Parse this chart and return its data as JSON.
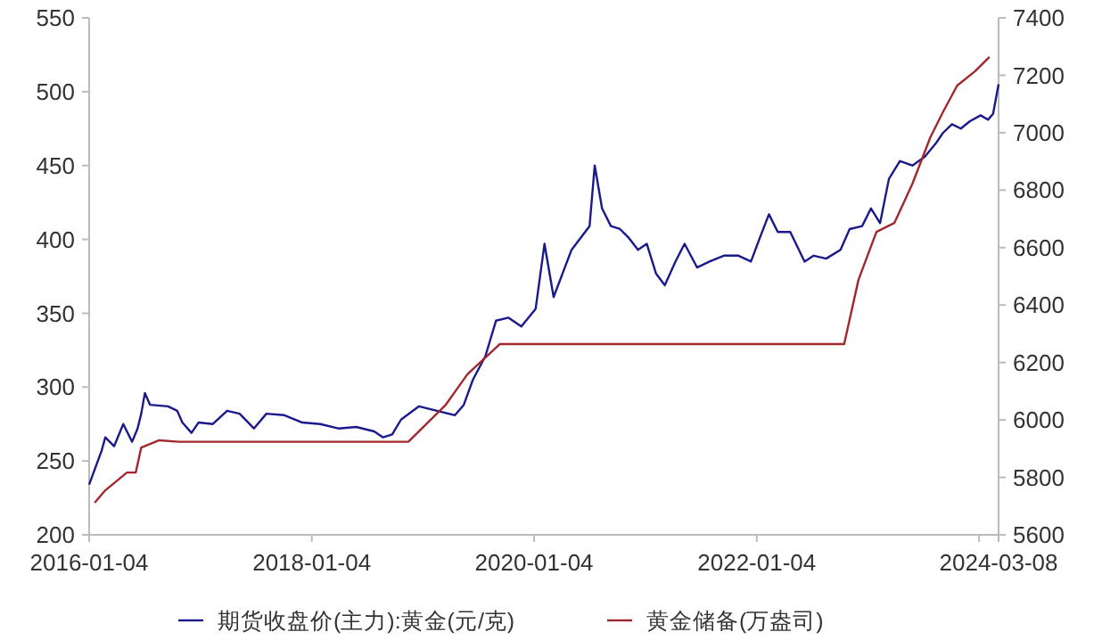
{
  "chart_data": {
    "type": "line",
    "xlim": [
      "2016-01-04",
      "2024-03-08"
    ],
    "xticks": [
      {
        "value": "2016-01-04",
        "label": "2016-01-04"
      },
      {
        "value": "2018-01-04",
        "label": "2018-01-04"
      },
      {
        "value": "2020-01-04",
        "label": "2020-01-04"
      },
      {
        "value": "2022-01-04",
        "label": "2022-01-04"
      },
      {
        "value": "2024-01-04",
        "label": null
      },
      {
        "value": "2024-03-08",
        "label": "2024-03-08"
      }
    ],
    "ylim": [
      200,
      550
    ],
    "yticks": [
      200,
      250,
      300,
      350,
      400,
      450,
      500,
      550
    ],
    "y2lim": [
      5600,
      7400
    ],
    "y2ticks": [
      5600,
      5800,
      6000,
      6200,
      6400,
      6600,
      6800,
      7000,
      7200,
      7400
    ],
    "grid": false,
    "legend": "bottom",
    "line_style": "solid",
    "marker": "none",
    "series": [
      {
        "name": "期货收盘价(主力):黄金(元/克)",
        "color": "#1a1a8c",
        "x": [
          "2016-01-04",
          "2016-02-14",
          "2016-02-26",
          "2016-03-26",
          "2016-04-25",
          "2016-05-24",
          "2016-06-11",
          "2016-06-23",
          "2016-07-05",
          "2016-07-22",
          "2016-09-19",
          "2016-10-19",
          "2016-11-05",
          "2016-12-05",
          "2016-12-28",
          "2017-02-13",
          "2017-04-01",
          "2017-05-12",
          "2017-06-28",
          "2017-08-08",
          "2017-10-06",
          "2017-12-04",
          "2018-02-01",
          "2018-04-01",
          "2018-05-30",
          "2018-07-28",
          "2018-08-26",
          "2018-09-25",
          "2018-10-24",
          "2018-12-22",
          "2019-02-19",
          "2019-04-19",
          "2019-05-18",
          "2019-06-17",
          "2019-07-28",
          "2019-09-01",
          "2019-10-12",
          "2019-11-23",
          "2020-01-09",
          "2020-02-07",
          "2020-03-08",
          "2020-05-06",
          "2020-07-04",
          "2020-07-21",
          "2020-08-14",
          "2020-09-12",
          "2020-10-12",
          "2020-11-10",
          "2020-12-10",
          "2021-01-08",
          "2021-02-07",
          "2021-03-08",
          "2021-04-12",
          "2021-05-12",
          "2021-06-22",
          "2021-08-02",
          "2021-09-18",
          "2021-11-05",
          "2021-12-16",
          "2022-01-14",
          "2022-02-13",
          "2022-03-14",
          "2022-04-24",
          "2022-06-10",
          "2022-07-10",
          "2022-08-20",
          "2022-10-06",
          "2022-11-05",
          "2022-12-16",
          "2023-01-14",
          "2023-02-13",
          "2023-03-14",
          "2023-04-19",
          "2023-05-30",
          "2023-07-10",
          "2023-08-15",
          "2023-09-07",
          "2023-10-07",
          "2023-11-05",
          "2023-12-05",
          "2024-01-09",
          "2024-02-02",
          "2024-02-19",
          "2024-03-08"
        ],
        "values": [
          234,
          257,
          266,
          260,
          275,
          263,
          272,
          282,
          296,
          288,
          287,
          284,
          276,
          269,
          276,
          275,
          284,
          282,
          272,
          282,
          281,
          276,
          275,
          272,
          273,
          270,
          266,
          268,
          278,
          287,
          284,
          281,
          288,
          305,
          321,
          345,
          347,
          341,
          353,
          397,
          361,
          393,
          409,
          450,
          421,
          409,
          407,
          401,
          393,
          397,
          377,
          369,
          385,
          397,
          381,
          385,
          389,
          389,
          385,
          401,
          417,
          405,
          405,
          385,
          389,
          387,
          393,
          407,
          409,
          421,
          411,
          441,
          453,
          450,
          456,
          465,
          472,
          478,
          475,
          480,
          484,
          481,
          485,
          505
        ]
      },
      {
        "name": "黄金储备(万盎司)",
        "color": "#a0282c",
        "axis": "y2",
        "x": [
          "2016-01-22",
          "2016-02-26",
          "2016-05-07",
          "2016-06-05",
          "2016-06-23",
          "2016-08-21",
          "2016-10-25",
          "2018-11-17",
          "2019-03-20",
          "2019-05-30",
          "2019-09-13",
          "2022-10-18",
          "2022-12-04",
          "2023-02-01",
          "2023-04-01",
          "2023-05-30",
          "2023-07-28",
          "2023-09-07",
          "2023-10-24",
          "2023-12-22",
          "2024-02-07"
        ],
        "values": [
          5712,
          5755,
          5817,
          5817,
          5904,
          5929,
          5924,
          5924,
          6053,
          6159,
          6264,
          6264,
          6488,
          6655,
          6686,
          6822,
          6984,
          7071,
          7164,
          7214,
          7264
        ]
      }
    ]
  }
}
